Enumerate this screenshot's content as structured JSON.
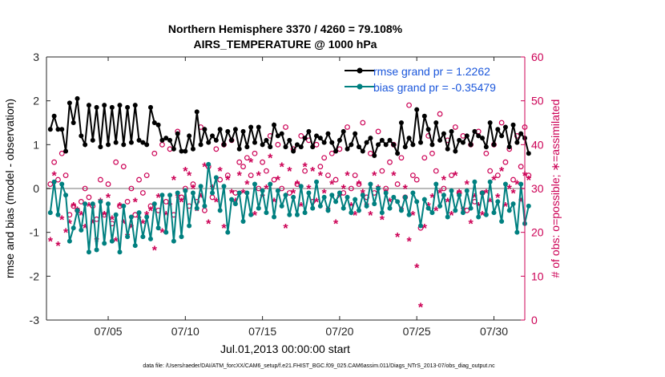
{
  "chart_data": {
    "type": "line",
    "title_line1": "Northern Hemisphere 3370 / 4260 = 79.108%",
    "title_line2": "AIRS_TEMPERATURE @ 1000 hPa",
    "xlabel": "Jul.01,2013 00:00:00 start",
    "ylabel_left": "rmse and bias (model - observation)",
    "ylabel_right": "# of obs: o=possible; ∗=assimilated",
    "footer": "data file: /Users/raeder/DAI/ATM_forcXX/CAM6_setup/f.e21.FHIST_BGC.f09_025.CAM6assim.011/Diags_NTrS_2013-07/obs_diag_output.nc",
    "xlim": [
      1,
      32
    ],
    "xticks": [
      5,
      10,
      15,
      20,
      25,
      30
    ],
    "xtick_labels": [
      "07/05",
      "07/10",
      "07/15",
      "07/20",
      "07/25",
      "07/30"
    ],
    "ylim_left": [
      -3,
      3
    ],
    "yticks_left": [
      "3",
      "2",
      "1",
      "0",
      "-1",
      "-2",
      "-3"
    ],
    "ylim_right": [
      0,
      60
    ],
    "yticks_right": [
      "60",
      "50",
      "40",
      "30",
      "20",
      "10",
      "0"
    ],
    "legend": {
      "rmse_label": "rmse grand pr = 1.2262",
      "bias_label": "bias grand pr = -0.35479",
      "position": "top-right"
    },
    "colors": {
      "rmse": "#000000",
      "bias": "#008080",
      "obs": "#cc0055",
      "zero_line": "#bbbbbb",
      "legend_text": "#1a56db"
    },
    "t_start": 1.25,
    "t_step": 0.25,
    "rmse": [
      1.35,
      1.65,
      1.35,
      1.35,
      0.85,
      1.95,
      1.5,
      2.05,
      1.2,
      1.0,
      1.9,
      1.1,
      1.85,
      0.95,
      1.9,
      1.0,
      1.85,
      1.05,
      1.9,
      1.0,
      1.85,
      1.05,
      1.9,
      1.1,
      1.05,
      1.0,
      1.85,
      1.5,
      1.45,
      1.1,
      1.15,
      1.1,
      0.9,
      1.25,
      0.85,
      0.85,
      1.2,
      0.9,
      1.75,
      1.0,
      1.35,
      1.05,
      1.2,
      1.1,
      1.35,
      1.0,
      1.3,
      1.1,
      1.35,
      0.9,
      1.3,
      0.95,
      1.4,
      1.05,
      1.4,
      1.0,
      1.1,
      0.95,
      1.45,
      1.2,
      1.25,
      0.95,
      1.1,
      0.85,
      1.0,
      0.95,
      1.15,
      1.3,
      0.95,
      1.2,
      1.15,
      1.05,
      1.25,
      1.05,
      0.85,
      1.1,
      1.3,
      0.9,
      1.0,
      1.25,
      0.95,
      0.85,
      1.05,
      1.15,
      0.75,
      1.0,
      1.1,
      1.0,
      1.1,
      1.0,
      0.8,
      1.5,
      0.95,
      1.15,
      1.0,
      1.8,
      1.05,
      1.65,
      1.35,
      1.0,
      1.5,
      1.1,
      1.25,
      0.9,
      1.3,
      0.85,
      1.1,
      1.05,
      1.2,
      1.0,
      1.3,
      1.2,
      1.15,
      0.95,
      1.5,
      1.0,
      1.35,
      1.2,
      1.4,
      0.95,
      1.45,
      1.05,
      1.25,
      1.15,
      0.8
    ],
    "bias": [
      -0.55,
      0.15,
      -0.6,
      0.1,
      -0.15,
      -1.2,
      -0.9,
      -0.5,
      -0.95,
      -0.35,
      -1.45,
      -0.35,
      -1.4,
      -0.3,
      -1.25,
      -0.35,
      -1.2,
      -0.6,
      -1.45,
      -0.4,
      -1.1,
      -0.65,
      -1.3,
      -0.55,
      -1.1,
      -0.65,
      -1.15,
      -0.35,
      -0.9,
      -0.15,
      -1.0,
      -0.15,
      -1.2,
      -0.1,
      -1.1,
      -0.05,
      -0.85,
      -0.1,
      -0.45,
      0.05,
      -0.4,
      0.55,
      -0.1,
      0.25,
      -0.5,
      0.05,
      -1.0,
      -0.25,
      -0.35,
      -0.1,
      -0.75,
      -0.1,
      -0.6,
      0.1,
      -0.45,
      -0.05,
      -0.55,
      0.1,
      -0.65,
      -0.05,
      -0.4,
      -0.15,
      -0.6,
      -0.2,
      -0.6,
      0.05,
      -0.55,
      -0.1,
      -0.45,
      0.15,
      -0.4,
      -0.2,
      -0.5,
      -0.15,
      -0.3,
      -0.1,
      -0.45,
      -0.2,
      -0.55,
      -0.25,
      -0.5,
      -0.15,
      -0.4,
      0.1,
      -0.35,
      0.0,
      -0.55,
      -0.1,
      -0.45,
      -0.2,
      -0.3,
      -0.5,
      -0.2,
      -0.6,
      -0.1,
      -0.3,
      -0.85,
      -0.25,
      -0.45,
      -0.55,
      0.1,
      -0.4,
      -0.15,
      -0.65,
      -0.05,
      -0.5,
      -0.15,
      -0.55,
      -0.05,
      -0.45,
      0.15,
      -0.65,
      -0.1,
      -0.6,
      0.15,
      -0.55,
      -0.3,
      -0.75,
      0.1,
      -0.5,
      -0.35,
      -1.0,
      0.1,
      -0.8,
      -0.4
    ],
    "obs_possible": [
      31,
      36,
      32,
      38,
      33,
      24,
      26,
      25,
      27,
      30,
      28,
      26,
      23,
      32,
      24,
      31,
      22,
      36,
      26,
      35,
      27,
      30,
      24,
      32,
      29,
      33,
      26,
      38,
      25,
      40,
      27,
      39,
      24,
      43,
      28,
      30,
      26,
      31,
      27,
      44,
      25,
      35,
      28,
      39,
      32,
      40,
      33,
      41,
      29,
      36,
      35,
      37,
      33,
      38,
      30,
      36,
      34,
      42,
      32,
      40,
      30,
      44,
      29,
      39,
      31,
      42,
      34,
      41,
      27,
      40,
      35,
      37,
      33,
      38,
      32,
      39,
      29,
      44,
      30,
      33,
      31,
      45,
      28,
      38,
      29,
      43,
      34,
      30,
      36,
      40,
      31,
      37,
      28,
      49,
      33,
      32,
      21,
      37,
      42,
      38,
      34,
      47,
      30,
      41,
      33,
      44,
      29,
      42,
      25,
      40,
      27,
      43,
      29,
      38,
      34,
      40,
      33,
      45,
      36,
      39,
      32,
      42,
      35,
      44,
      33
    ],
    "obs_assimilated": [
      18,
      33,
      17,
      23,
      20,
      22,
      26,
      25,
      24,
      21,
      26,
      22,
      18,
      27,
      24,
      28,
      23,
      18,
      26,
      22,
      19,
      21,
      27,
      23,
      22,
      24,
      25,
      16,
      28,
      20,
      24,
      26,
      32,
      28,
      27,
      34,
      33,
      30,
      25,
      28,
      35,
      22,
      30,
      27,
      34,
      21,
      32,
      29,
      27,
      33,
      29,
      31,
      36,
      24,
      33,
      28,
      30,
      37,
      27,
      32,
      35,
      21,
      34,
      29,
      31,
      26,
      35,
      30,
      34,
      27,
      33,
      29,
      25,
      31,
      22,
      28,
      30,
      33,
      26,
      24,
      31,
      29,
      26,
      24,
      33,
      30,
      23,
      29,
      27,
      33,
      19,
      25,
      30,
      18,
      24,
      12,
      3,
      21,
      26,
      28,
      25,
      29,
      32,
      27,
      24,
      33,
      29,
      25,
      31,
      22,
      28,
      26,
      24,
      29,
      27,
      32,
      28,
      34,
      26,
      30,
      29,
      31,
      27,
      33,
      32
    ]
  }
}
